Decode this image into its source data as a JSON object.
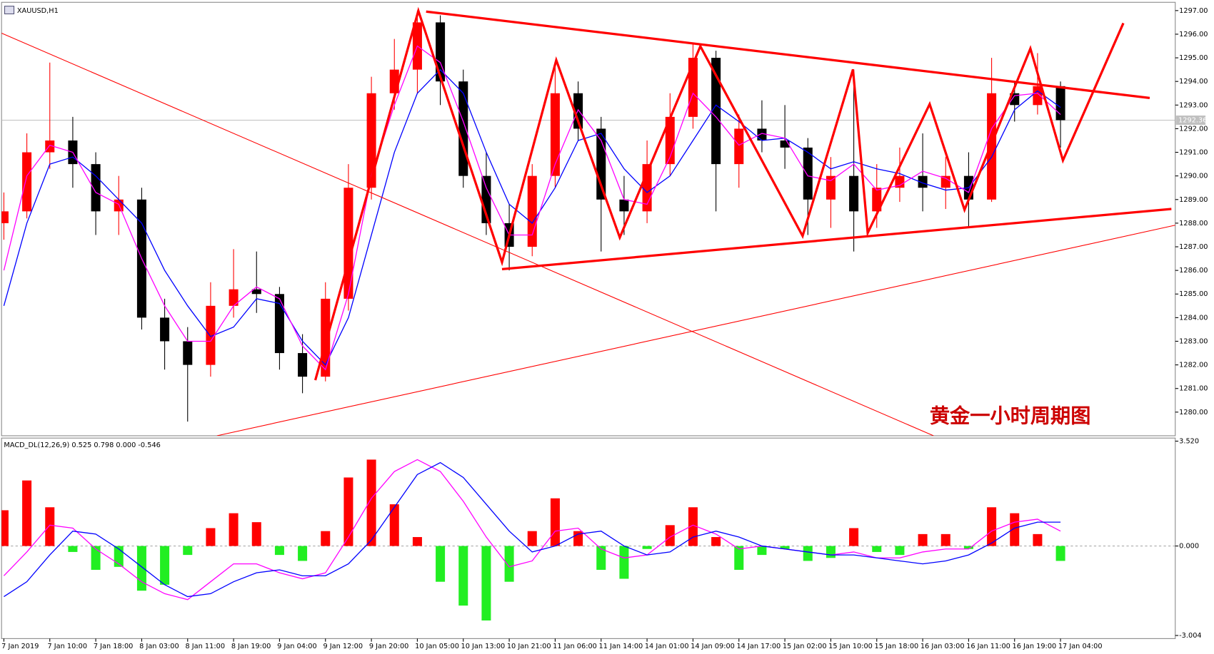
{
  "chart_data": [
    {
      "type": "candlestick",
      "title": "XAUUSD,H1",
      "annotation": "黄金一小时周期图",
      "categories": [
        "7 Jan 2019",
        null,
        "7 Jan 10:00",
        null,
        "7 Jan 18:00",
        null,
        "8 Jan 03:00",
        null,
        "8 Jan 11:00",
        null,
        "8 Jan 19:00",
        null,
        "9 Jan 04:00",
        null,
        "9 Jan 12:00",
        null,
        "9 Jan 20:00",
        null,
        "10 Jan 05:00",
        null,
        "10 Jan 13:00",
        null,
        "10 Jan 21:00",
        null,
        "11 Jan 06:00",
        null,
        "11 Jan 14:00",
        null,
        "14 Jan 01:00",
        null,
        "14 Jan 09:00",
        null,
        "14 Jan 17:00",
        null,
        "15 Jan 02:00",
        null,
        "15 Jan 10:00",
        null,
        "15 Jan 18:00",
        null,
        "16 Jan 03:00",
        null,
        "16 Jan 11:00",
        null,
        "16 Jan 19:00",
        null,
        "17 Jan 04:00"
      ],
      "open": [
        1288.0,
        1288.5,
        1291.0,
        1291.5,
        1290.5,
        1288.5,
        1289.0,
        1284.0,
        1283.0,
        1282.0,
        1284.5,
        1285.2,
        1285.0,
        1282.5,
        1281.5,
        1284.8,
        1289.5,
        1293.5,
        1294.5,
        1296.5,
        1294.0,
        1290.0,
        1288.0,
        1287.0,
        1290.0,
        1293.5,
        1292.0,
        1289.0,
        1288.5,
        1290.5,
        1292.5,
        1295.0,
        1290.5,
        1292.0,
        1291.5,
        1291.2,
        1289.0,
        1290.0,
        1288.5,
        1289.5,
        1290.0,
        1289.5,
        1290.0,
        1289.0,
        1293.5,
        1293.0,
        1293.8
      ],
      "high": [
        1289.3,
        1291.8,
        1294.8,
        1292.5,
        1291.0,
        1290.0,
        1289.5,
        1284.8,
        1283.6,
        1285.5,
        1286.9,
        1286.8,
        1285.3,
        1283.3,
        1285.5,
        1290.5,
        1294.2,
        1295.8,
        1297.0,
        1296.8,
        1294.5,
        1291.0,
        1288.8,
        1290.5,
        1294.8,
        1294.0,
        1292.5,
        1290.0,
        1291.5,
        1293.5,
        1295.6,
        1295.3,
        1292.6,
        1293.2,
        1293.0,
        1291.6,
        1290.8,
        1294.5,
        1290.5,
        1291.2,
        1291.8,
        1290.8,
        1291.0,
        1295.0,
        1294.0,
        1295.2,
        1294.0
      ],
      "low": [
        1287.3,
        1288.2,
        1290.3,
        1289.5,
        1287.5,
        1287.5,
        1283.5,
        1281.8,
        1279.6,
        1281.5,
        1284.0,
        1284.2,
        1281.8,
        1280.8,
        1281.3,
        1284.3,
        1289.0,
        1292.8,
        1293.5,
        1293.0,
        1289.5,
        1287.5,
        1286.0,
        1286.6,
        1289.5,
        1291.5,
        1286.8,
        1287.5,
        1288.0,
        1290.0,
        1292.0,
        1288.5,
        1289.5,
        1291.0,
        1290.3,
        1287.5,
        1287.8,
        1286.8,
        1287.8,
        1288.9,
        1288.5,
        1288.6,
        1287.8,
        1288.9,
        1292.3,
        1292.6,
        1291.2
      ],
      "close": [
        1288.5,
        1291.0,
        1291.5,
        1290.5,
        1288.5,
        1289.0,
        1284.0,
        1283.0,
        1282.0,
        1284.5,
        1285.2,
        1285.0,
        1282.5,
        1281.5,
        1284.8,
        1289.5,
        1293.5,
        1294.5,
        1296.5,
        1294.0,
        1290.0,
        1288.0,
        1287.0,
        1290.0,
        1293.5,
        1292.0,
        1289.0,
        1288.5,
        1290.5,
        1292.5,
        1295.0,
        1290.5,
        1292.0,
        1291.5,
        1291.2,
        1289.0,
        1290.0,
        1288.5,
        1289.5,
        1290.0,
        1289.5,
        1290.0,
        1289.0,
        1293.5,
        1293.0,
        1293.8,
        1292.36
      ],
      "up_color": "#ff0000",
      "down_color": "#000000",
      "series": [
        {
          "color": "#0000ff",
          "values": [
            1284.5,
            1288,
            1290.5,
            1290.8,
            1290,
            1289,
            1288,
            1286,
            1284.5,
            1283.2,
            1283.6,
            1284.8,
            1284.6,
            1283,
            1282,
            1284,
            1287.5,
            1291,
            1293.5,
            1294.5,
            1293.5,
            1291,
            1288.8,
            1288,
            1289.5,
            1291.5,
            1291.8,
            1290.3,
            1289.3,
            1290,
            1291.5,
            1293,
            1292.3,
            1291.5,
            1291.6,
            1291,
            1290.3,
            1290.6,
            1290.3,
            1290.1,
            1289.7,
            1289.4,
            1289.5,
            1290.8,
            1292.8,
            1293.6,
            1292.9
          ]
        },
        {
          "color": "#ff00ff",
          "values": [
            1286,
            1290,
            1291.3,
            1291,
            1289.3,
            1288.8,
            1286.5,
            1284.5,
            1283,
            1283,
            1284.5,
            1285.3,
            1284.8,
            1282.8,
            1281.8,
            1285,
            1290,
            1293,
            1295.5,
            1294.8,
            1292.3,
            1289.5,
            1287.5,
            1287.5,
            1290.5,
            1292.8,
            1291.5,
            1289,
            1288.8,
            1290.8,
            1293.5,
            1292.5,
            1291.3,
            1291.8,
            1291.6,
            1290,
            1289.8,
            1290.5,
            1289.4,
            1289.6,
            1290.2,
            1289.9,
            1289.3,
            1292,
            1293.4,
            1293.5,
            1292.6
          ]
        }
      ],
      "last_price": 1292.36,
      "ylim": [
        1279.0,
        1297.35
      ],
      "yticks": [
        {
          "value": 1280,
          "label": "1280.00"
        },
        {
          "value": 1281,
          "label": "1281.00"
        },
        {
          "value": 1282,
          "label": "1282.00"
        },
        {
          "value": 1283,
          "label": "1283.00"
        },
        {
          "value": 1284,
          "label": "1284.00"
        },
        {
          "value": 1285,
          "label": "1285.00"
        },
        {
          "value": 1286,
          "label": "1286.00"
        },
        {
          "value": 1287,
          "label": "1287.00"
        },
        {
          "value": 1288,
          "label": "1288.00"
        },
        {
          "value": 1289,
          "label": "1289.00"
        },
        {
          "value": 1290,
          "label": "1290.00"
        },
        {
          "value": 1291,
          "label": "1291.00"
        },
        {
          "value": 1292,
          "label": "1292.00"
        },
        {
          "value": 1293,
          "label": "1293.00"
        },
        {
          "value": 1294,
          "label": "1294.00"
        },
        {
          "value": 1295,
          "label": "1295.00"
        },
        {
          "value": 1296,
          "label": "1296.00"
        },
        {
          "value": 1297,
          "label": "1297.00"
        }
      ]
    },
    {
      "type": "macd",
      "title": "MACD_DL(12,26,9) 0.525 0.798 0.000 -0.546",
      "values": [
        1.2,
        2.2,
        1.3,
        -0.2,
        -0.8,
        -0.7,
        -1.5,
        -1.3,
        -0.3,
        0.6,
        1.1,
        0.8,
        -0.3,
        -0.5,
        0.5,
        2.3,
        2.9,
        1.4,
        0.3,
        -1.2,
        -2.0,
        -2.5,
        -1.2,
        0.5,
        1.6,
        0.5,
        -0.8,
        -1.1,
        -0.1,
        0.7,
        1.3,
        0.3,
        -0.8,
        -0.3,
        -0.1,
        -0.5,
        -0.4,
        0.6,
        -0.2,
        -0.3,
        0.4,
        0.4,
        -0.1,
        1.3,
        1.1,
        0.4,
        -0.5
      ],
      "up_color": "#ff0000",
      "down_color": "#22ee22",
      "series": [
        {
          "color": "#ff00ff",
          "values": [
            -1.0,
            -0.2,
            0.7,
            0.6,
            -0.1,
            -0.6,
            -1.2,
            -1.6,
            -1.8,
            -1.2,
            -0.6,
            -0.6,
            -0.9,
            -1.1,
            -0.9,
            0.3,
            1.6,
            2.5,
            2.9,
            2.5,
            1.5,
            0.3,
            -0.7,
            -0.5,
            0.5,
            0.6,
            -0.1,
            -0.4,
            -0.3,
            0.3,
            0.7,
            0.4,
            -0.1,
            0.0,
            -0.1,
            -0.2,
            -0.3,
            -0.2,
            -0.4,
            -0.4,
            -0.2,
            -0.1,
            -0.1,
            0.5,
            0.8,
            0.9,
            0.5
          ]
        },
        {
          "color": "#0000ff",
          "values": [
            -1.7,
            -1.2,
            -0.3,
            0.5,
            0.4,
            -0.1,
            -0.7,
            -1.3,
            -1.7,
            -1.6,
            -1.2,
            -0.9,
            -0.8,
            -1.0,
            -1.0,
            -0.6,
            0.2,
            1.3,
            2.4,
            2.8,
            2.3,
            1.4,
            0.5,
            -0.2,
            0.0,
            0.4,
            0.5,
            0.0,
            -0.3,
            -0.2,
            0.3,
            0.5,
            0.3,
            0.0,
            -0.1,
            -0.2,
            -0.3,
            -0.3,
            -0.4,
            -0.5,
            -0.6,
            -0.5,
            -0.3,
            0.1,
            0.6,
            0.8,
            0.8
          ]
        }
      ],
      "ylim": [
        -3.004,
        3.52
      ],
      "yticks": [
        {
          "value": 3.52,
          "label": "3.520"
        },
        {
          "value": 0,
          "label": "0.000"
        },
        {
          "value": -3.004,
          "label": "-3.004"
        }
      ]
    }
  ]
}
